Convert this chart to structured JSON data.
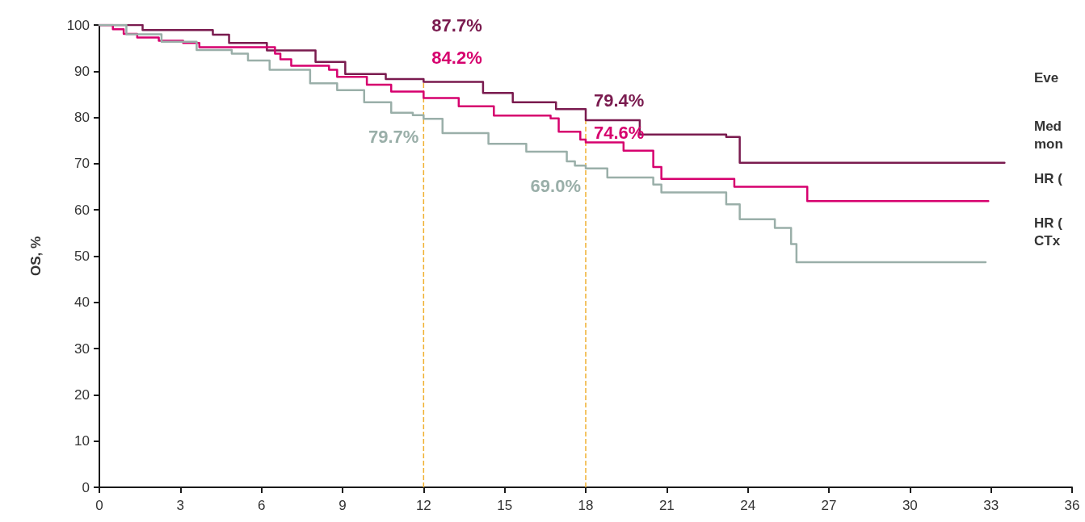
{
  "chart_data": {
    "type": "step",
    "ylabel": "OS, %",
    "xlim": [
      0,
      36
    ],
    "xticks": [
      0,
      3,
      6,
      9,
      12,
      15,
      18,
      21,
      24,
      27,
      30,
      33,
      36
    ],
    "ylim": [
      0,
      100
    ],
    "yticks": [
      0,
      10,
      20,
      30,
      40,
      50,
      60,
      70,
      80,
      90,
      100
    ],
    "grid": false,
    "marker": "none",
    "line_style": "solid",
    "series": [
      {
        "color": "#7a1b4f",
        "x": [
          0,
          1.6,
          4.2,
          4.8,
          6.2,
          8.0,
          9.1,
          10.6,
          12.0,
          14.2,
          15.3,
          16.9,
          18.0,
          20.0,
          23.2,
          23.7,
          33.5
        ],
        "values": [
          100,
          98.9,
          97.9,
          96.1,
          94.5,
          92.0,
          89.4,
          88.3,
          87.7,
          85.3,
          83.3,
          81.8,
          79.4,
          76.3,
          75.8,
          70.2,
          70.2
        ],
        "value_labels": [
          null,
          null,
          null,
          null,
          null,
          null,
          null,
          null,
          "87.7%",
          null,
          null,
          null,
          "79.4%",
          null,
          null,
          null,
          null
        ]
      },
      {
        "color": "#d6006e",
        "x": [
          0,
          0.5,
          0.9,
          1.4,
          2.2,
          3.1,
          3.7,
          6.5,
          6.7,
          7.1,
          8.5,
          8.8,
          9.9,
          10.8,
          12.0,
          13.3,
          14.6,
          16.7,
          17.0,
          17.8,
          18.0,
          19.4,
          20.5,
          20.8,
          23.5,
          26.2,
          32.9
        ],
        "values": [
          100,
          99.1,
          98.1,
          97.3,
          96.6,
          96.1,
          95.2,
          93.8,
          92.6,
          91.2,
          90.3,
          88.8,
          87.1,
          85.6,
          84.2,
          82.4,
          80.4,
          79.8,
          76.9,
          75.2,
          74.6,
          72.8,
          69.3,
          66.7,
          65.0,
          61.9,
          61.9
        ],
        "value_labels": [
          null,
          null,
          null,
          null,
          null,
          null,
          null,
          null,
          null,
          null,
          null,
          null,
          null,
          null,
          "84.2%",
          null,
          null,
          null,
          null,
          null,
          "74.6%",
          null,
          null,
          null,
          null,
          null,
          null
        ]
      },
      {
        "color": "#9aafa9",
        "x": [
          0,
          1.0,
          2.3,
          3.6,
          4.9,
          5.5,
          6.3,
          7.8,
          8.8,
          9.8,
          10.8,
          11.6,
          12.0,
          12.7,
          14.4,
          15.8,
          17.3,
          17.6,
          18.0,
          18.8,
          20.5,
          20.8,
          23.2,
          23.7,
          25.0,
          25.6,
          25.8,
          32.8
        ],
        "values": [
          100,
          98.0,
          96.4,
          94.6,
          93.8,
          92.3,
          90.3,
          87.4,
          85.9,
          83.3,
          81.0,
          80.5,
          79.7,
          76.6,
          74.3,
          72.6,
          70.5,
          69.6,
          69.0,
          67.0,
          65.5,
          63.8,
          61.2,
          58.0,
          56.1,
          52.6,
          48.7,
          48.7
        ],
        "value_labels": [
          null,
          null,
          null,
          null,
          null,
          null,
          null,
          null,
          null,
          null,
          null,
          null,
          "79.7%",
          null,
          null,
          null,
          null,
          null,
          "69.0%",
          null,
          null,
          null,
          null,
          null,
          null,
          null,
          null,
          null
        ]
      }
    ],
    "ref_lines": [
      {
        "axis": "x",
        "value": 12,
        "color": "#f0b030",
        "line_style": "dashed"
      },
      {
        "axis": "x",
        "value": 18,
        "color": "#f0b030",
        "line_style": "dashed"
      }
    ],
    "annotations": [
      "Eve",
      "Med mon",
      "HR (",
      "HR ( CTx"
    ]
  }
}
